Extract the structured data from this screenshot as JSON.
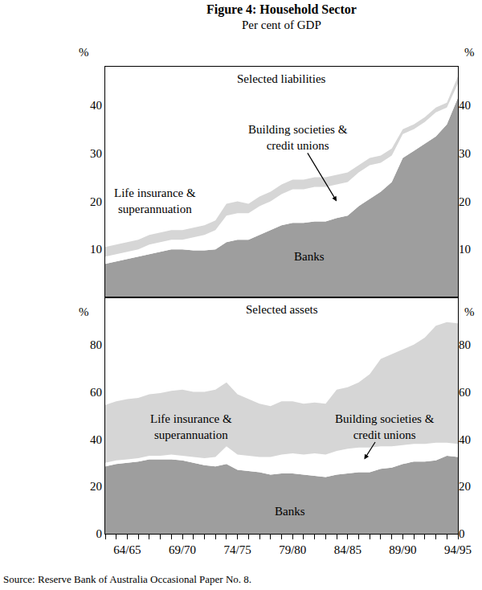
{
  "title": "Figure 4: Household Sector",
  "subtitle": "Per cent of GDP",
  "source": "Source: Reserve Bank of Australia Occasional Paper No. 8.",
  "chart_data": [
    {
      "type": "area",
      "title": "Selected liabilities",
      "stacked": true,
      "grid": false,
      "ylabel": "%",
      "categories": [
        null,
        null,
        "64/65",
        null,
        null,
        null,
        null,
        "69/70",
        null,
        null,
        null,
        null,
        "74/75",
        null,
        null,
        null,
        null,
        "79/80",
        null,
        null,
        null,
        null,
        "84/85",
        null,
        null,
        null,
        null,
        "89/90",
        null,
        null,
        null,
        null,
        "94/95"
      ],
      "ylim": [
        0,
        48
      ],
      "yticks": [
        10,
        20,
        30,
        40
      ],
      "series": [
        {
          "name": "Banks",
          "color": "#9e9e9e",
          "values": [
            7.0,
            7.5,
            8.0,
            8.5,
            9.0,
            9.5,
            10.0,
            10.0,
            9.8,
            9.8,
            10.0,
            11.5,
            12.0,
            12.0,
            13.0,
            14.0,
            15.0,
            15.5,
            15.5,
            15.8,
            15.8,
            16.5,
            17.0,
            19.0,
            20.5,
            22.0,
            24.0,
            29.0,
            30.5,
            32.0,
            33.5,
            36.0,
            41.5
          ]
        },
        {
          "name": "Building societies & credit unions",
          "color": "#ffffff",
          "values": [
            1.5,
            1.5,
            1.5,
            1.5,
            2.0,
            2.0,
            2.0,
            2.0,
            2.7,
            3.2,
            4.0,
            5.5,
            5.5,
            5.5,
            6.0,
            6.0,
            6.5,
            7.0,
            7.0,
            7.2,
            7.2,
            7.0,
            7.0,
            7.0,
            7.0,
            6.0,
            5.5,
            5.0,
            4.5,
            4.5,
            5.0,
            3.5,
            3.0
          ]
        },
        {
          "name": "Life insurance & superannuation",
          "color": "#d6d6d6",
          "values": [
            2.0,
            2.0,
            2.0,
            2.0,
            2.0,
            2.0,
            2.0,
            2.0,
            2.0,
            2.0,
            2.0,
            2.5,
            2.5,
            2.0,
            2.0,
            2.0,
            2.0,
            2.0,
            2.0,
            2.0,
            2.0,
            2.0,
            2.0,
            1.5,
            1.5,
            1.5,
            1.5,
            1.0,
            1.0,
            1.0,
            1.0,
            1.0,
            1.5
          ]
        }
      ]
    },
    {
      "type": "area",
      "title": "Selected assets",
      "stacked": true,
      "grid": false,
      "ylabel": "%",
      "categories": [
        null,
        null,
        "64/65",
        null,
        null,
        null,
        null,
        "69/70",
        null,
        null,
        null,
        null,
        "74/75",
        null,
        null,
        null,
        null,
        "79/80",
        null,
        null,
        null,
        null,
        "84/85",
        null,
        null,
        null,
        null,
        "89/90",
        null,
        null,
        null,
        null,
        "94/95"
      ],
      "ylim": [
        0,
        100
      ],
      "yticks": [
        0,
        20,
        40,
        60,
        80
      ],
      "series": [
        {
          "name": "Banks",
          "color": "#9e9e9e",
          "values": [
            28.5,
            29.5,
            30.0,
            30.5,
            31.5,
            31.5,
            31.5,
            31.0,
            30.0,
            29.0,
            28.5,
            29.5,
            27.0,
            26.5,
            26.0,
            25.0,
            25.5,
            25.5,
            25.0,
            24.5,
            24.0,
            25.0,
            25.5,
            26.0,
            26.0,
            27.5,
            28.0,
            29.5,
            30.5,
            30.5,
            31.0,
            33.0,
            32.5
          ]
        },
        {
          "name": "Building societies & credit unions",
          "color": "#ffffff",
          "values": [
            1.5,
            1.5,
            1.5,
            1.5,
            1.5,
            1.5,
            2.0,
            2.0,
            2.5,
            3.0,
            4.0,
            7.5,
            6.5,
            6.5,
            6.5,
            7.5,
            8.0,
            8.5,
            8.5,
            9.5,
            9.5,
            10.0,
            10.5,
            10.5,
            10.5,
            9.5,
            9.0,
            8.0,
            7.5,
            7.5,
            7.5,
            5.5,
            5.5
          ]
        },
        {
          "name": "Life insurance & superannuation",
          "color": "#d6d6d6",
          "values": [
            24.5,
            25.0,
            25.5,
            25.5,
            26.0,
            26.5,
            27.0,
            28.0,
            27.5,
            28.0,
            28.5,
            27.0,
            25.5,
            24.0,
            22.5,
            21.5,
            22.5,
            22.0,
            21.5,
            21.5,
            21.5,
            26.0,
            26.0,
            27.5,
            31.0,
            37.0,
            39.0,
            40.5,
            42.0,
            45.0,
            49.5,
            51.0,
            51.0
          ]
        }
      ]
    }
  ]
}
